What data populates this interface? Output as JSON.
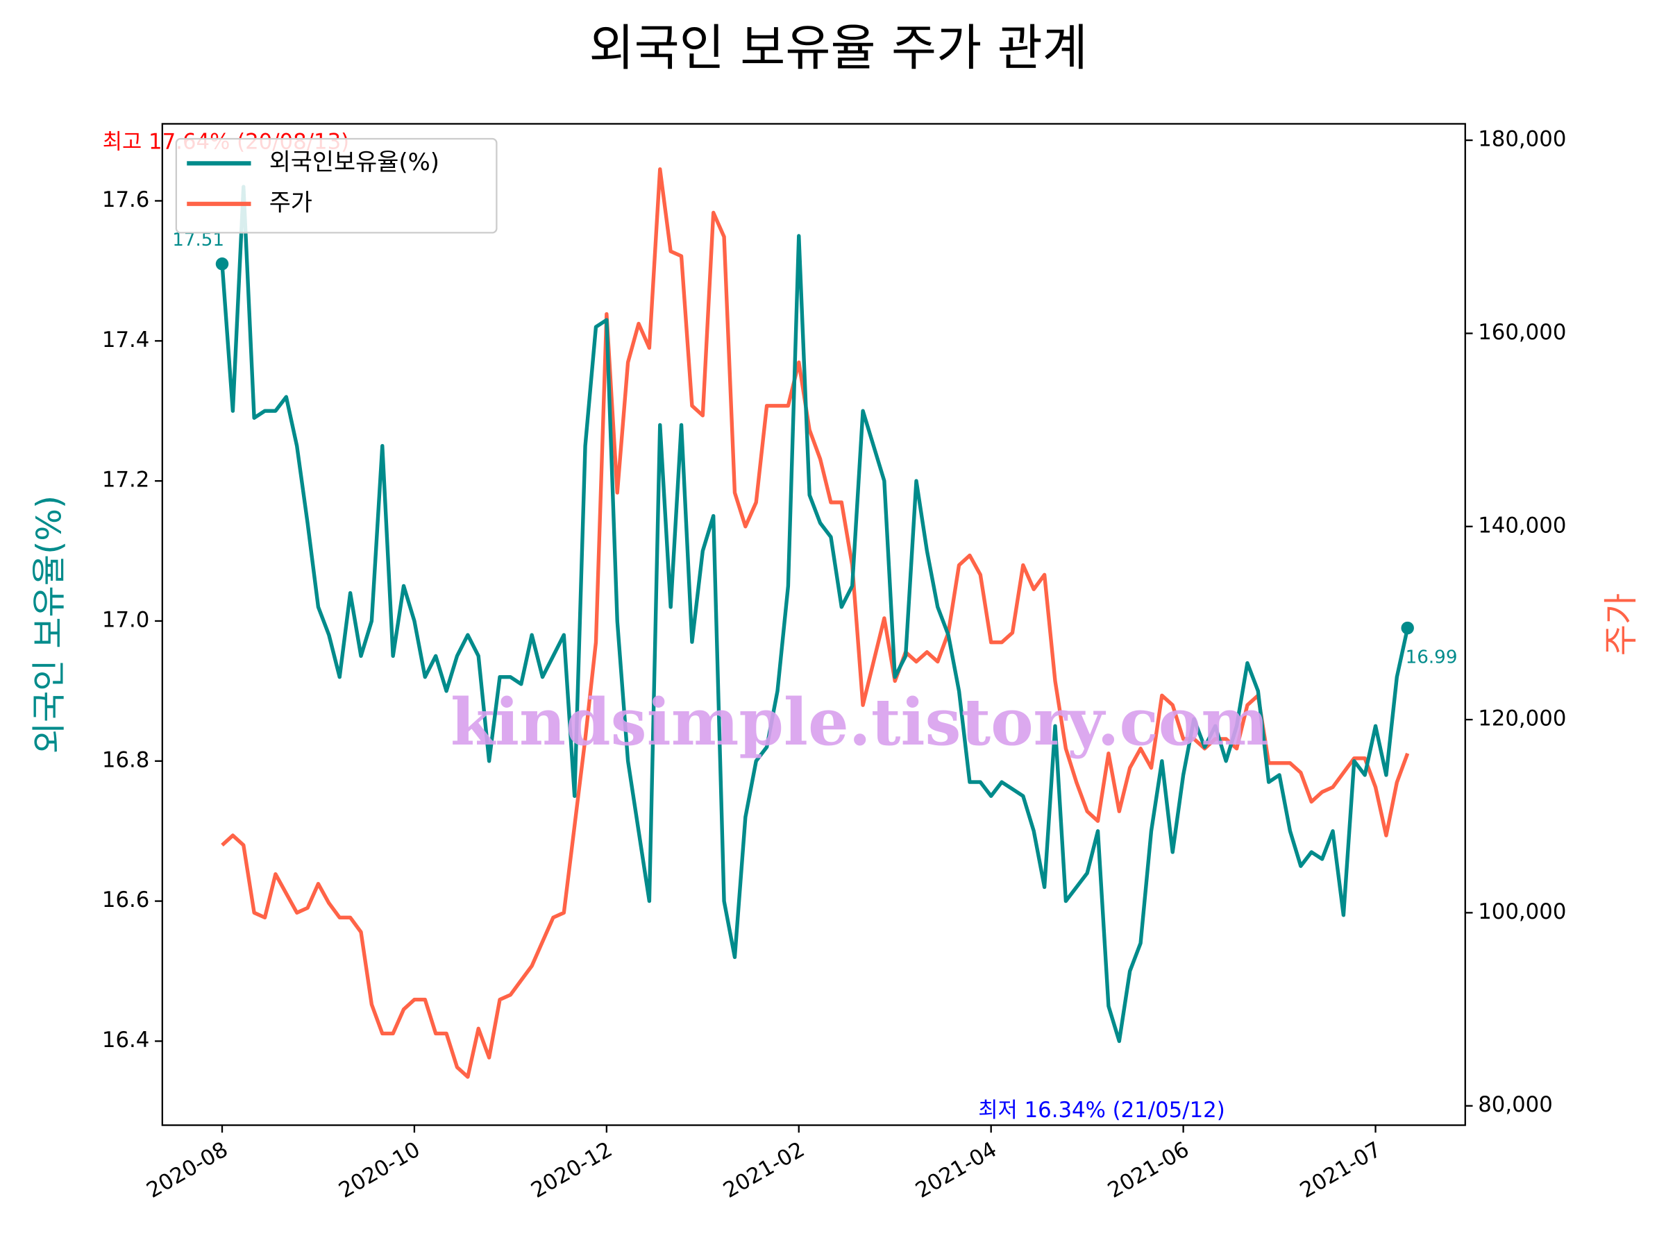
{
  "chart_data": {
    "type": "line",
    "title": "외국인 보유율 주가 관계",
    "y_label": "외국인 보유율(%)",
    "y2_label": "주가",
    "categories": [
      "2020-08",
      null,
      null,
      null,
      null,
      null,
      null,
      null,
      null,
      null,
      null,
      null,
      null,
      null,
      null,
      null,
      null,
      null,
      "2020-10",
      null,
      null,
      null,
      null,
      null,
      null,
      null,
      null,
      null,
      null,
      null,
      null,
      null,
      null,
      null,
      null,
      null,
      "2020-12",
      null,
      null,
      null,
      null,
      null,
      null,
      null,
      null,
      null,
      null,
      null,
      null,
      null,
      null,
      null,
      null,
      null,
      "2021-02",
      null,
      null,
      null,
      null,
      null,
      null,
      null,
      null,
      null,
      null,
      null,
      null,
      null,
      null,
      null,
      null,
      null,
      "2021-04",
      null,
      null,
      null,
      null,
      null,
      null,
      null,
      null,
      null,
      null,
      null,
      null,
      null,
      null,
      null,
      null,
      null,
      "2021-06",
      null,
      null,
      null,
      null,
      null,
      null,
      null,
      null,
      null,
      null,
      null,
      null,
      null,
      null,
      null,
      null,
      null,
      "2021-07",
      null,
      null,
      null
    ],
    "series": [
      {
        "name": "외국인보유율(%)",
        "color": "#008b8b",
        "values": [
          17.51,
          17.3,
          17.62,
          17.29,
          17.3,
          17.3,
          17.32,
          17.25,
          17.14,
          17.02,
          16.98,
          16.92,
          17.04,
          16.95,
          17.0,
          17.25,
          16.95,
          17.05,
          17.0,
          16.92,
          16.95,
          16.9,
          16.95,
          16.98,
          16.95,
          16.8,
          16.92,
          16.92,
          16.91,
          16.98,
          16.92,
          16.95,
          16.98,
          16.75,
          17.25,
          17.42,
          17.43,
          17.0,
          16.8,
          16.7,
          16.6,
          17.28,
          17.02,
          17.28,
          16.97,
          17.1,
          17.15,
          16.6,
          16.52,
          16.72,
          16.8,
          16.82,
          16.9,
          17.05,
          17.55,
          17.18,
          17.14,
          17.12,
          17.02,
          17.05,
          17.3,
          17.25,
          17.2,
          16.92,
          16.95,
          17.2,
          17.1,
          17.02,
          16.98,
          16.9,
          16.77,
          16.77,
          16.75,
          16.77,
          16.76,
          16.75,
          16.7,
          16.62,
          16.85,
          16.6,
          16.62,
          16.64,
          16.7,
          16.45,
          16.4,
          16.5,
          16.54,
          16.7,
          16.8,
          16.67,
          16.78,
          16.86,
          16.82,
          16.85,
          16.8,
          16.85,
          16.94,
          16.9,
          16.77,
          16.78,
          16.7,
          16.65,
          16.67,
          16.66,
          16.7,
          16.58,
          16.8,
          16.78,
          16.85,
          16.78,
          16.92,
          16.99
        ]
      },
      {
        "name": "주가",
        "color": "#ff6347",
        "axis": "y2",
        "values": [
          107000,
          108000,
          107000,
          100000,
          99500,
          104000,
          102000,
          100000,
          100500,
          103000,
          101000,
          99500,
          99500,
          98000,
          90500,
          87500,
          87500,
          90000,
          91000,
          91000,
          87500,
          87500,
          84000,
          83000,
          88000,
          85000,
          91000,
          91500,
          93000,
          94500,
          97000,
          99500,
          100000,
          109000,
          118000,
          128000,
          162000,
          143500,
          157000,
          161000,
          158500,
          177000,
          168500,
          168000,
          152500,
          151500,
          172500,
          170000,
          143500,
          140000,
          142500,
          152500,
          152500,
          152500,
          157000,
          150000,
          147000,
          142500,
          142500,
          136000,
          121500,
          126000,
          130500,
          124000,
          127000,
          126000,
          127000,
          126000,
          129000,
          136000,
          137000,
          135000,
          128000,
          128000,
          129000,
          136000,
          133500,
          135000,
          124000,
          117000,
          113500,
          110500,
          109500,
          116500,
          110500,
          115000,
          117000,
          115000,
          122500,
          121500,
          118000,
          118000,
          117000,
          118000,
          118000,
          117000,
          121500,
          122500,
          115500,
          115500,
          115500,
          114500,
          111500,
          112500,
          113000,
          114500,
          116000,
          116000,
          113000,
          108000,
          113500,
          116500
        ]
      }
    ],
    "ylim": [
      16.28,
      17.71
    ],
    "yticks": [
      16.4,
      16.6,
      16.8,
      {
        "value": 17,
        "label": "17.0"
      },
      17.2,
      17.4,
      17.6
    ],
    "y2lim": [
      78000,
      181700
    ],
    "y2ticks": [
      {
        "value": 80000,
        "label": "80,000"
      },
      {
        "value": 100000,
        "label": "100,000"
      },
      {
        "value": 120000,
        "label": "120,000"
      },
      {
        "value": 140000,
        "label": "140,000"
      },
      {
        "value": 160000,
        "label": "160,000"
      },
      {
        "value": 180000,
        "label": "180,000"
      }
    ],
    "legend": "upper left",
    "annotations": [
      "최고 17.64% (20/08/13)",
      "최저 16.34% (21/05/12)"
    ],
    "watermark": "kindsimple.tistory.com"
  }
}
